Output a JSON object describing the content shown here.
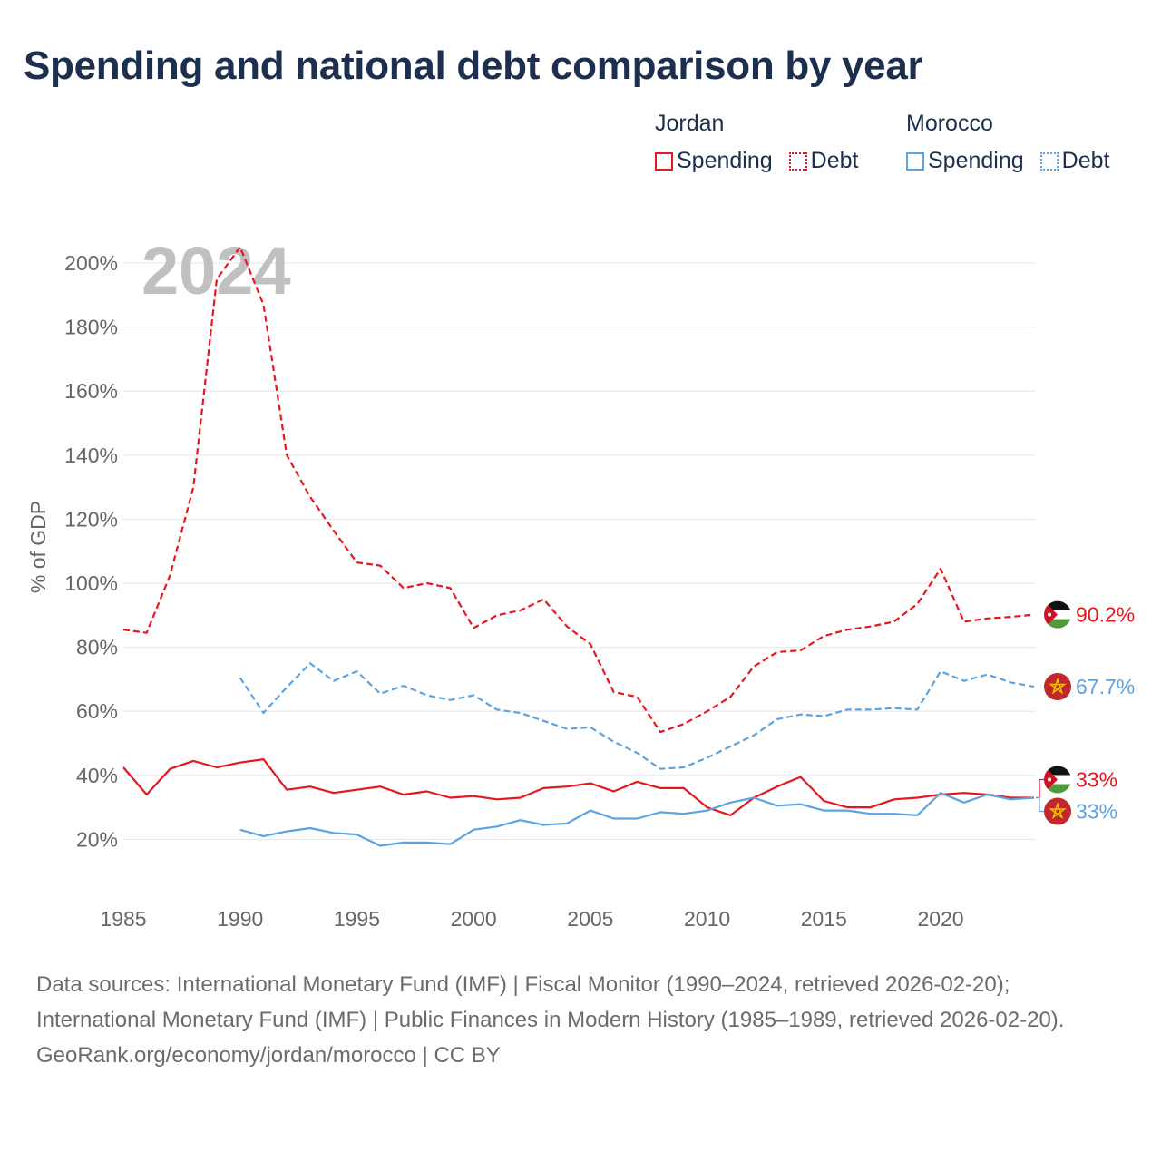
{
  "title": "Spending and national debt comparison by year",
  "legend": {
    "groups": [
      {
        "name": "Jordan",
        "color": "#e8161d",
        "items": [
          "Spending",
          "Debt"
        ]
      },
      {
        "name": "Morocco",
        "color": "#5ba3e2",
        "items": [
          "Spending",
          "Debt"
        ]
      }
    ]
  },
  "year_watermark": "2024",
  "chart_data": {
    "type": "line",
    "ylabel": "% of GDP",
    "xlabel": "",
    "xlim": [
      1985,
      2024
    ],
    "ylim": [
      0,
      210
    ],
    "x_ticks": [
      1985,
      1990,
      1995,
      2000,
      2005,
      2010,
      2015,
      2020
    ],
    "y_ticks": [
      20,
      40,
      60,
      80,
      100,
      120,
      140,
      160,
      180,
      200
    ],
    "y_tick_labels": [
      "20%",
      "40%",
      "60%",
      "80%",
      "100%",
      "120%",
      "140%",
      "160%",
      "180%",
      "200%"
    ],
    "series": [
      {
        "name": "Jordan Debt",
        "country": "Jordan",
        "metric": "Debt",
        "style": "dashed",
        "color": "#e8161d",
        "x": [
          1985,
          1986,
          1987,
          1988,
          1989,
          1990,
          1991,
          1992,
          1993,
          1994,
          1995,
          1996,
          1997,
          1998,
          1999,
          2000,
          2001,
          2002,
          2003,
          2004,
          2005,
          2006,
          2007,
          2008,
          2009,
          2010,
          2011,
          2012,
          2013,
          2014,
          2015,
          2016,
          2017,
          2018,
          2019,
          2020,
          2021,
          2022,
          2023,
          2024
        ],
        "values": [
          85.5,
          84.5,
          102.5,
          130,
          195,
          205,
          187,
          140,
          127,
          116.5,
          106.5,
          105.5,
          98.5,
          100,
          98.5,
          86,
          90,
          91.5,
          95,
          86.5,
          81,
          66,
          64.5,
          53.5,
          56,
          60,
          64.5,
          74,
          78.5,
          79,
          83.5,
          85.5,
          86.5,
          88,
          93.5,
          104.5,
          88,
          89,
          89.5,
          90.2
        ],
        "end_label": "90.2%"
      },
      {
        "name": "Morocco Debt",
        "country": "Morocco",
        "metric": "Debt",
        "style": "dashed",
        "color": "#5ba3e2",
        "x": [
          1990,
          1991,
          1992,
          1993,
          1994,
          1995,
          1996,
          1997,
          1998,
          1999,
          2000,
          2001,
          2002,
          2003,
          2004,
          2005,
          2006,
          2007,
          2008,
          2009,
          2010,
          2011,
          2012,
          2013,
          2014,
          2015,
          2016,
          2017,
          2018,
          2019,
          2020,
          2021,
          2022,
          2023,
          2024
        ],
        "values": [
          70.5,
          59.5,
          67.5,
          75,
          69.5,
          72.5,
          65.5,
          68,
          65,
          63.5,
          65,
          60.5,
          59.5,
          57,
          54.5,
          55,
          50.5,
          47,
          42,
          42.5,
          45.5,
          49,
          52.5,
          57.5,
          59,
          58.5,
          60.5,
          60.5,
          61,
          60.5,
          72.5,
          69.5,
          71.5,
          69,
          67.7
        ],
        "end_label": "67.7%"
      },
      {
        "name": "Jordan Spending",
        "country": "Jordan",
        "metric": "Spending",
        "style": "solid",
        "color": "#e8161d",
        "x": [
          1985,
          1986,
          1987,
          1988,
          1989,
          1990,
          1991,
          1992,
          1993,
          1994,
          1995,
          1996,
          1997,
          1998,
          1999,
          2000,
          2001,
          2002,
          2003,
          2004,
          2005,
          2006,
          2007,
          2008,
          2009,
          2010,
          2011,
          2012,
          2013,
          2014,
          2015,
          2016,
          2017,
          2018,
          2019,
          2020,
          2021,
          2022,
          2023,
          2024
        ],
        "values": [
          42.5,
          34,
          42,
          44.5,
          42.5,
          44,
          45,
          35.5,
          36.5,
          34.5,
          35.5,
          36.5,
          34,
          35,
          33,
          33.5,
          32.5,
          33,
          36,
          36.5,
          37.5,
          35,
          38,
          36,
          36,
          30,
          27.5,
          33,
          36.5,
          39.5,
          32,
          30,
          30,
          32.5,
          33,
          34,
          34.5,
          34,
          33,
          33
        ],
        "end_label": "33%"
      },
      {
        "name": "Morocco Spending",
        "country": "Morocco",
        "metric": "Spending",
        "style": "solid",
        "color": "#5ba3e2",
        "x": [
          1990,
          1991,
          1992,
          1993,
          1994,
          1995,
          1996,
          1997,
          1998,
          1999,
          2000,
          2001,
          2002,
          2003,
          2004,
          2005,
          2006,
          2007,
          2008,
          2009,
          2010,
          2011,
          2012,
          2013,
          2014,
          2015,
          2016,
          2017,
          2018,
          2019,
          2020,
          2021,
          2022,
          2023,
          2024
        ],
        "values": [
          23,
          21,
          22.5,
          23.5,
          22,
          21.5,
          18,
          19,
          19,
          18.5,
          23,
          24,
          26,
          24.5,
          25,
          29,
          26.5,
          26.5,
          28.5,
          28,
          29,
          31.5,
          33,
          30.5,
          31,
          29,
          29,
          28,
          28,
          27.5,
          34.5,
          31.5,
          34,
          32.5,
          33
        ],
        "end_label": "33%"
      }
    ]
  },
  "footer": {
    "sources": "Data sources: International Monetary Fund (IMF) | Fiscal Monitor (1990–2024, retrieved 2026-02-20); International Monetary Fund (IMF) | Public Finances in Modern History (1985–1989, retrieved 2026-02-20).",
    "credit": "GeoRank.org/economy/jordan/morocco | CC BY"
  }
}
